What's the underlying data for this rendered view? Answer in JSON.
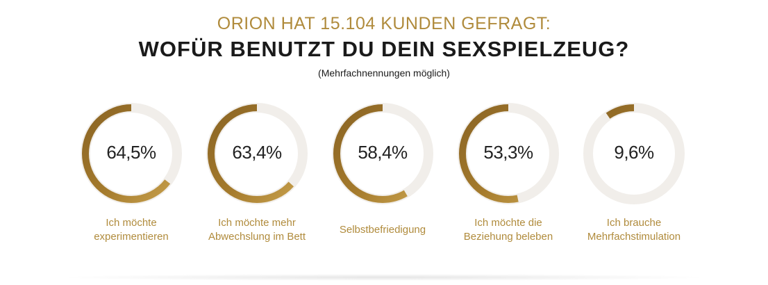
{
  "header": {
    "kicker": "ORION HAT 15.104 KUNDEN GEFRAGT:",
    "title": "WOFÜR BENUTZT DU DEIN SEXSPIELZEUG?",
    "note": "(Mehrfachnennungen möglich)"
  },
  "colors": {
    "gold": "#b08b3c",
    "track": "#f1eeea",
    "text": "#1a1a1a"
  },
  "chart_data": {
    "type": "pie",
    "max": 100,
    "series": [
      {
        "value": 64.5,
        "value_label": "64,5%",
        "label_lines": [
          "Ich möchte",
          "experimentieren"
        ]
      },
      {
        "value": 63.4,
        "value_label": "63,4%",
        "label_lines": [
          "Ich möchte mehr",
          "Abwechslung im Bett"
        ]
      },
      {
        "value": 58.4,
        "value_label": "58,4%",
        "label_lines": [
          "Selbstbefriedigung"
        ]
      },
      {
        "value": 53.3,
        "value_label": "53,3%",
        "label_lines": [
          "Ich möchte die",
          "Beziehung beleben"
        ]
      },
      {
        "value": 9.6,
        "value_label": "9,6%",
        "label_lines": [
          "Ich brauche",
          "Mehrfachstimulation"
        ]
      }
    ]
  }
}
